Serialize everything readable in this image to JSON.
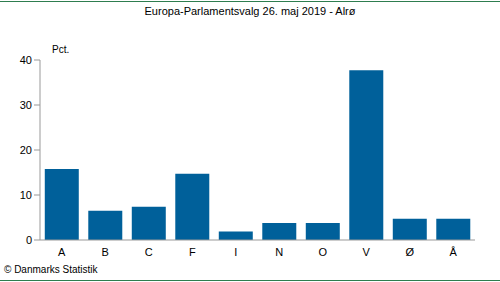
{
  "chart_data": {
    "type": "bar",
    "title": "Europa-Parlamentsvalg 26. maj 2019 - Alrø",
    "ylabel": "Pct.",
    "annotation": "© Danmarks Statistik",
    "categories": [
      "A",
      "B",
      "C",
      "F",
      "I",
      "N",
      "O",
      "V",
      "Ø",
      "Å"
    ],
    "values": [
      15.8,
      6.5,
      7.4,
      14.7,
      1.9,
      3.8,
      3.8,
      37.7,
      4.7,
      4.7
    ],
    "color": "#00609a",
    "ylim": [
      0,
      40
    ],
    "yticks": [
      0,
      10,
      20,
      30,
      40
    ],
    "grid": false
  }
}
